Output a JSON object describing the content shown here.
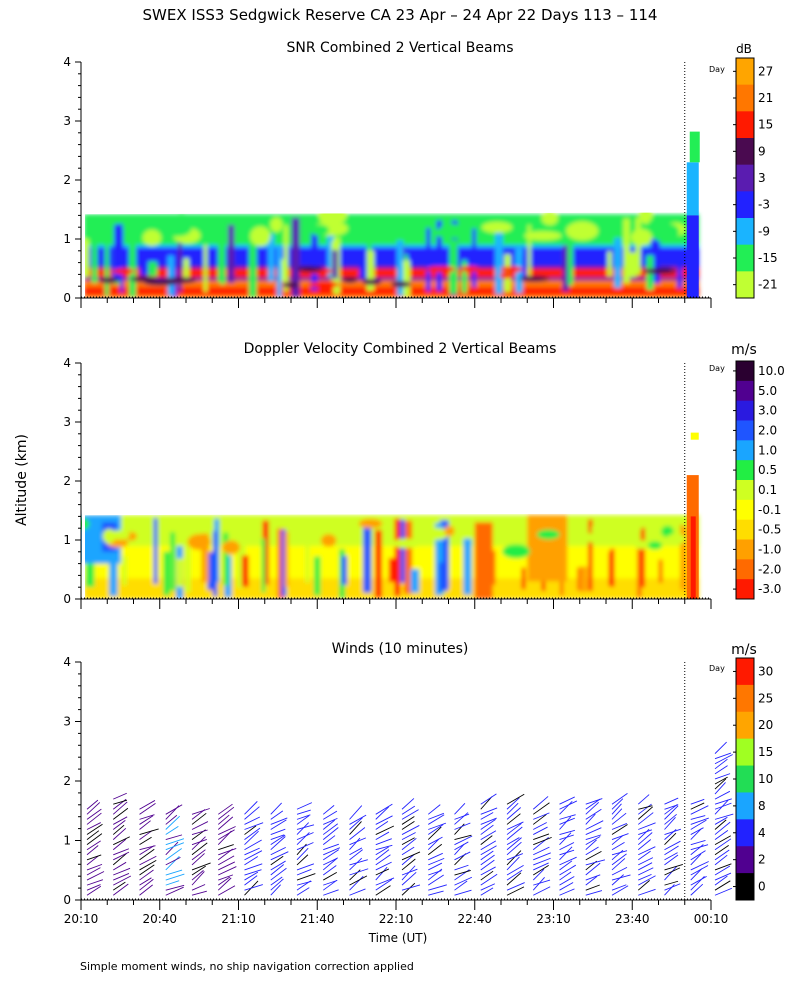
{
  "figure": {
    "title": "SWEX ISS3 Sedgwick Reserve CA  23 Apr – 24 Apr 22 Days 113 – 114",
    "ylabel": "Altitude (km)",
    "xlabel": "Time (UT)",
    "footnote": "Simple moment winds, no ship navigation correction applied",
    "day_marker_label": "Day"
  },
  "chart_data": [
    {
      "type": "heatmap",
      "title": "SNR Combined 2 Vertical Beams",
      "colorbar_unit": "dB",
      "colorbar_ticks": [
        "27",
        "21",
        "15",
        "9",
        "3",
        "-3",
        "-9",
        "-15",
        "-21"
      ],
      "colorbar_colors": [
        "#ffa500",
        "#ff7700",
        "#ff1a00",
        "#4a0a50",
        "#5a1cb0",
        "#2222ff",
        "#1ab4ff",
        "#22ee55",
        "#c0ff33"
      ],
      "x_ticks": [
        "20:10",
        "20:40",
        "21:10",
        "21:40",
        "22:10",
        "22:40",
        "23:10",
        "23:40",
        "00:10"
      ],
      "y_ticks": [
        "0",
        "1",
        "2",
        "3",
        "4"
      ],
      "ylim": [
        0,
        4
      ],
      "data_top_km": 1.42,
      "day_change_time": "00:00"
    },
    {
      "type": "heatmap",
      "title": "Doppler Velocity Combined 2 Vertical Beams",
      "colorbar_unit": "m/s",
      "colorbar_ticks": [
        "10.0",
        "5.0",
        "3.0",
        "2.0",
        "1.0",
        "0.5",
        "0.1",
        "-0.1",
        "-0.5",
        "-1.0",
        "-2.0",
        "-3.0"
      ],
      "colorbar_colors": [
        "#2a0030",
        "#500090",
        "#2a1ae0",
        "#1f55ff",
        "#1aa5ff",
        "#22ee44",
        "#cfff22",
        "#ffff00",
        "#ffdd00",
        "#ffa000",
        "#ff6a00",
        "#ff1a00"
      ],
      "x_ticks": [
        "20:10",
        "20:40",
        "21:10",
        "21:40",
        "22:10",
        "22:40",
        "23:10",
        "23:40",
        "00:10"
      ],
      "y_ticks": [
        "0",
        "1",
        "2",
        "3",
        "4"
      ],
      "ylim": [
        0,
        4
      ],
      "data_top_km": 1.42,
      "day_change_time": "00:00"
    },
    {
      "type": "scatter",
      "title": "Winds (10 minutes)",
      "colorbar_unit": "m/s",
      "colorbar_ticks": [
        "30",
        "25",
        "20",
        "15",
        "10",
        "8",
        "4",
        "2",
        "0"
      ],
      "colorbar_colors": [
        "#ff1a00",
        "#ff7700",
        "#ffa500",
        "#a0ff22",
        "#22dd55",
        "#1aa5ff",
        "#2222ff",
        "#500090",
        "#000000"
      ],
      "x_ticks": [
        "20:10",
        "20:40",
        "21:10",
        "21:40",
        "22:10",
        "22:40",
        "23:10",
        "23:40",
        "00:10"
      ],
      "y_ticks": [
        "0",
        "1",
        "2",
        "3",
        "4"
      ],
      "ylim": [
        0,
        4
      ],
      "profile_times_min": [
        0,
        10,
        20,
        30,
        40,
        50,
        60,
        70,
        80,
        90,
        100,
        110,
        120,
        130,
        140,
        150,
        160,
        170,
        180,
        190,
        200,
        210,
        220,
        230,
        240
      ],
      "profile_tops_km": [
        1.6,
        1.7,
        1.6,
        1.45,
        1.45,
        1.45,
        1.45,
        1.45,
        1.55,
        1.5,
        1.4,
        1.45,
        1.6,
        1.45,
        1.45,
        1.65,
        1.65,
        1.6,
        1.65,
        1.65,
        1.65,
        1.65,
        1.65,
        1.65,
        2.5
      ],
      "day_change_time": "00:00"
    }
  ]
}
